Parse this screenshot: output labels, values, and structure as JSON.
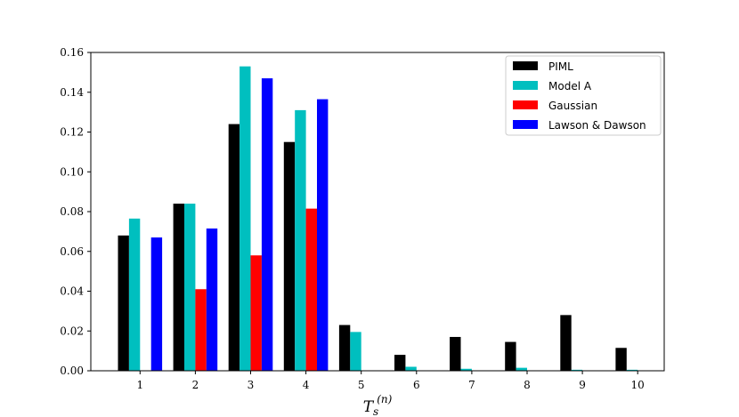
{
  "chart_data": {
    "type": "bar",
    "categories": [
      "1",
      "2",
      "3",
      "4",
      "5",
      "6",
      "7",
      "8",
      "9",
      "10"
    ],
    "series": [
      {
        "name": "PIML",
        "color": "#000000",
        "values": [
          0.068,
          0.084,
          0.124,
          0.115,
          0.023,
          0.008,
          0.017,
          0.0145,
          0.028,
          0.0115
        ]
      },
      {
        "name": "Model A",
        "color": "#00bfbf",
        "values": [
          0.0765,
          0.084,
          0.153,
          0.131,
          0.0195,
          0.002,
          0.001,
          0.0015,
          0.0005,
          0.0005
        ]
      },
      {
        "name": "Gaussian",
        "color": "#ff0000",
        "values": [
          0.0,
          0.041,
          0.058,
          0.0815,
          0.0,
          0.0,
          0.0,
          0.0,
          0.0,
          0.0
        ]
      },
      {
        "name": "Lawson & Dawson",
        "color": "#0000ff",
        "values": [
          0.067,
          0.0715,
          0.147,
          0.1365,
          0.0,
          0.0,
          0.0,
          0.0,
          0.0,
          0.0
        ]
      }
    ],
    "y_ticks": [
      "0.00",
      "0.02",
      "0.04",
      "0.06",
      "0.08",
      "0.10",
      "0.12",
      "0.14",
      "0.16"
    ],
    "ylim": [
      0,
      0.16
    ],
    "xlabel_main": "T",
    "xlabel_sub": "s",
    "xlabel_sup": "(n)",
    "legend_position": "top-right",
    "grid": false
  }
}
